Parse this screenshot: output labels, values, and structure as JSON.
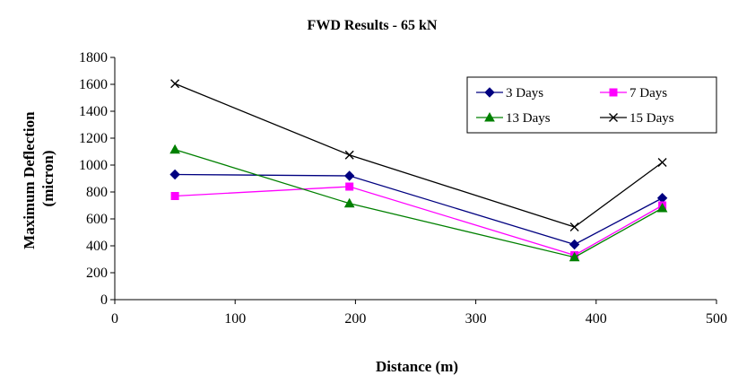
{
  "chart_data": {
    "type": "line",
    "title": "FWD Results - 65 kN",
    "xlabel": "Distance (m)",
    "ylabel": [
      "Maximum Deflection",
      "(micron)"
    ],
    "xlim": [
      0,
      500
    ],
    "ylim": [
      0,
      1800
    ],
    "x_ticks": [
      0,
      100,
      200,
      300,
      400,
      500
    ],
    "y_ticks": [
      0,
      200,
      400,
      600,
      800,
      1000,
      1200,
      1400,
      1600,
      1800
    ],
    "grid": false,
    "legend_position": "top-right",
    "series": [
      {
        "name": "3 Days",
        "color": "#000080",
        "marker": "diamond",
        "points": [
          [
            50,
            930
          ],
          [
            195,
            920
          ],
          [
            382,
            410
          ],
          [
            455,
            755
          ]
        ]
      },
      {
        "name": "7 Days",
        "color": "#ff00ff",
        "marker": "square",
        "points": [
          [
            50,
            770
          ],
          [
            195,
            840
          ],
          [
            382,
            330
          ],
          [
            455,
            700
          ]
        ]
      },
      {
        "name": "13 Days",
        "color": "#008000",
        "marker": "triangle",
        "points": [
          [
            50,
            1115
          ],
          [
            195,
            715
          ],
          [
            382,
            315
          ],
          [
            455,
            680
          ]
        ]
      },
      {
        "name": "15 Days",
        "color": "#000000",
        "marker": "x",
        "points": [
          [
            50,
            1605
          ],
          [
            195,
            1075
          ],
          [
            382,
            540
          ],
          [
            455,
            1020
          ]
        ]
      }
    ]
  }
}
